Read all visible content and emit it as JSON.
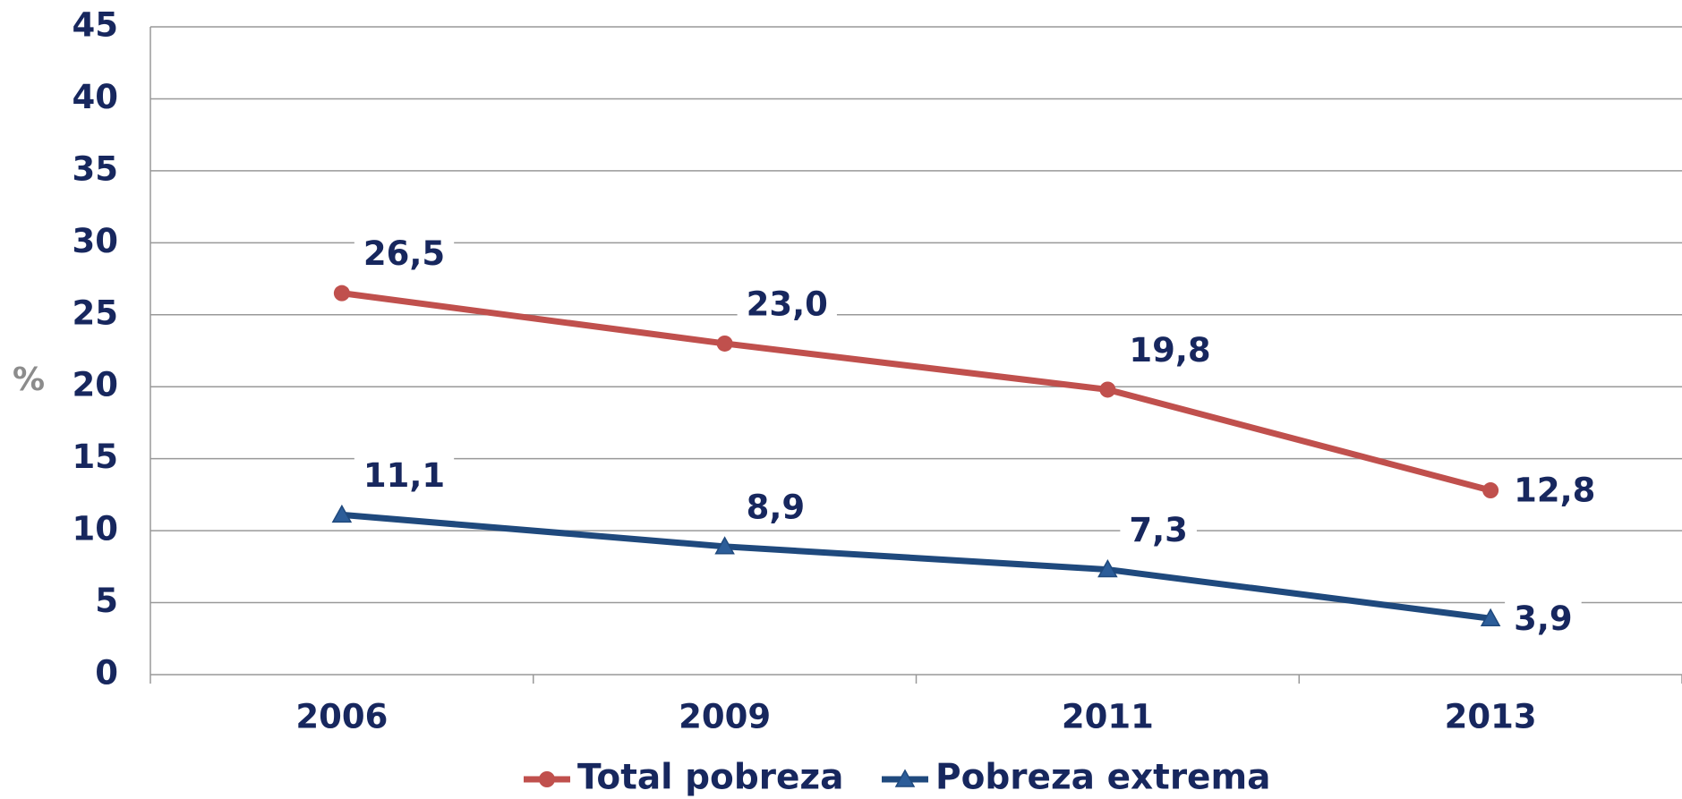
{
  "chart_data": {
    "type": "line",
    "ylabel": "%",
    "categories": [
      "2006",
      "2009",
      "2011",
      "2013"
    ],
    "series": [
      {
        "name": "Total pobreza",
        "color": "#c0504d",
        "marker": "circle",
        "values": [
          26.5,
          23.0,
          19.8,
          12.8
        ],
        "value_labels": [
          "26,5",
          "23,0",
          "19,8",
          "12,8"
        ]
      },
      {
        "name": "Pobreza extrema",
        "color": "#1f497d",
        "marker": "triangle",
        "values": [
          11.1,
          8.9,
          7.3,
          3.9
        ],
        "value_labels": [
          "11,1",
          "8,9",
          "7,3",
          "3,9"
        ]
      }
    ],
    "ylim": [
      0,
      45
    ],
    "yticks": [
      0,
      5,
      10,
      15,
      20,
      25,
      30,
      35,
      40,
      45
    ],
    "grid": true,
    "legend": "bottom"
  }
}
